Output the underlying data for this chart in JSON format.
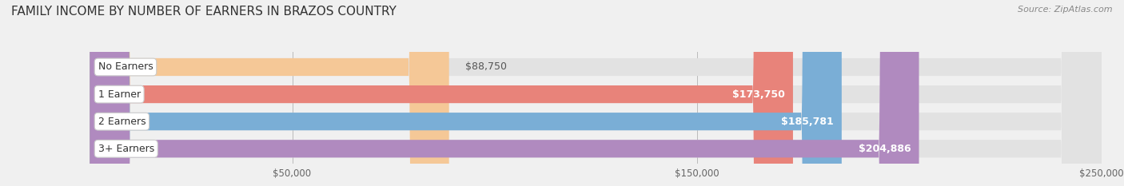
{
  "title": "FAMILY INCOME BY NUMBER OF EARNERS IN BRAZOS COUNTRY",
  "source": "Source: ZipAtlas.com",
  "categories": [
    "No Earners",
    "1 Earner",
    "2 Earners",
    "3+ Earners"
  ],
  "values": [
    88750,
    173750,
    185781,
    204886
  ],
  "bar_colors": [
    "#f5c897",
    "#e8837a",
    "#7aaed6",
    "#b08abf"
  ],
  "label_colors": [
    "#555555",
    "#ffffff",
    "#ffffff",
    "#ffffff"
  ],
  "label_values": [
    "$88,750",
    "$173,750",
    "$185,781",
    "$204,886"
  ],
  "xlim": [
    0,
    250000
  ],
  "xticks": [
    50000,
    150000,
    250000
  ],
  "xtick_labels": [
    "$50,000",
    "$150,000",
    "$250,000"
  ],
  "bg_color": "#f0f0f0",
  "bar_bg_color": "#e2e2e2",
  "bar_height": 0.65,
  "label_fontsize": 9,
  "category_fontsize": 9,
  "title_fontsize": 11
}
